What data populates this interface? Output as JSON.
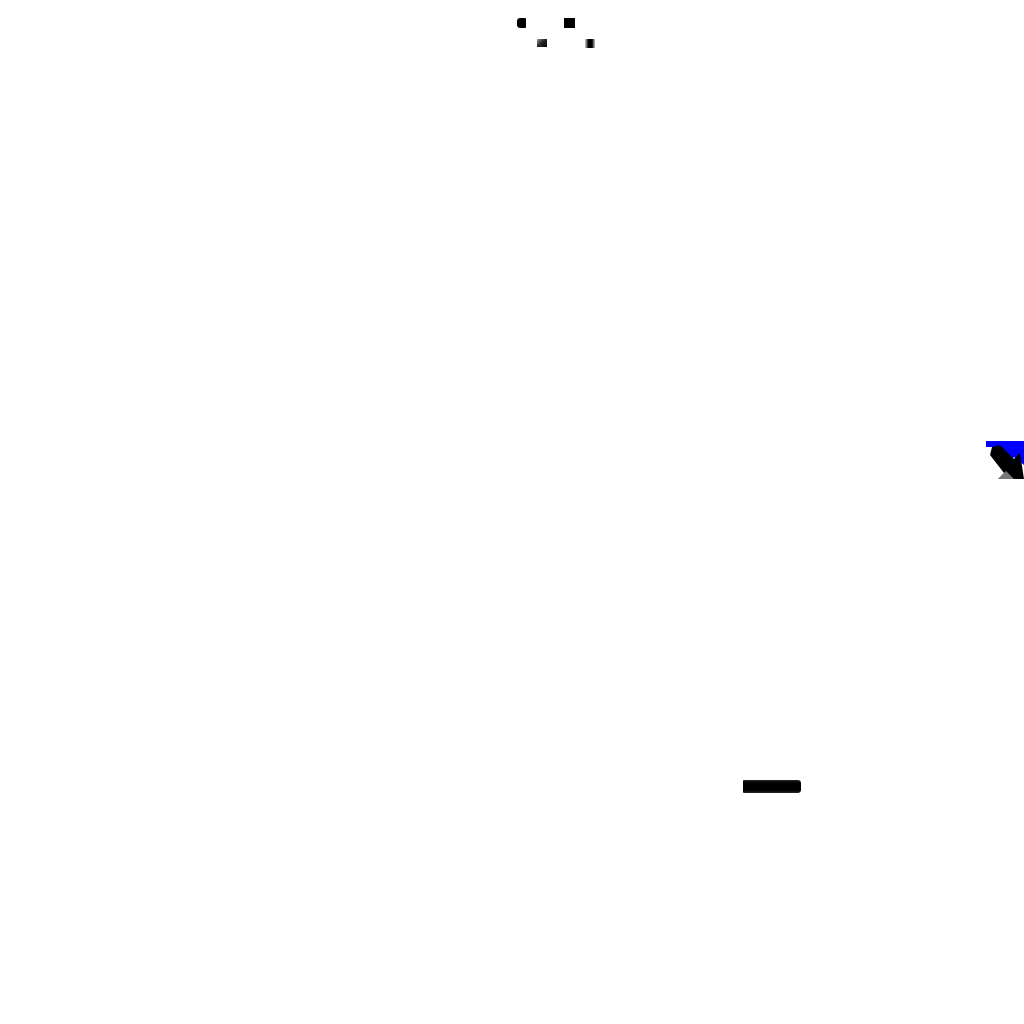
{
  "screen": {
    "background_color": "#ffffff"
  },
  "indicators": {
    "primary_color": "#000000"
  },
  "edge_handle": {
    "icon": "diagonal-arrow-icon",
    "accent_color": "#0000ff",
    "arrow_color": "#000000"
  },
  "bottom_bar": {
    "color": "#000000"
  }
}
